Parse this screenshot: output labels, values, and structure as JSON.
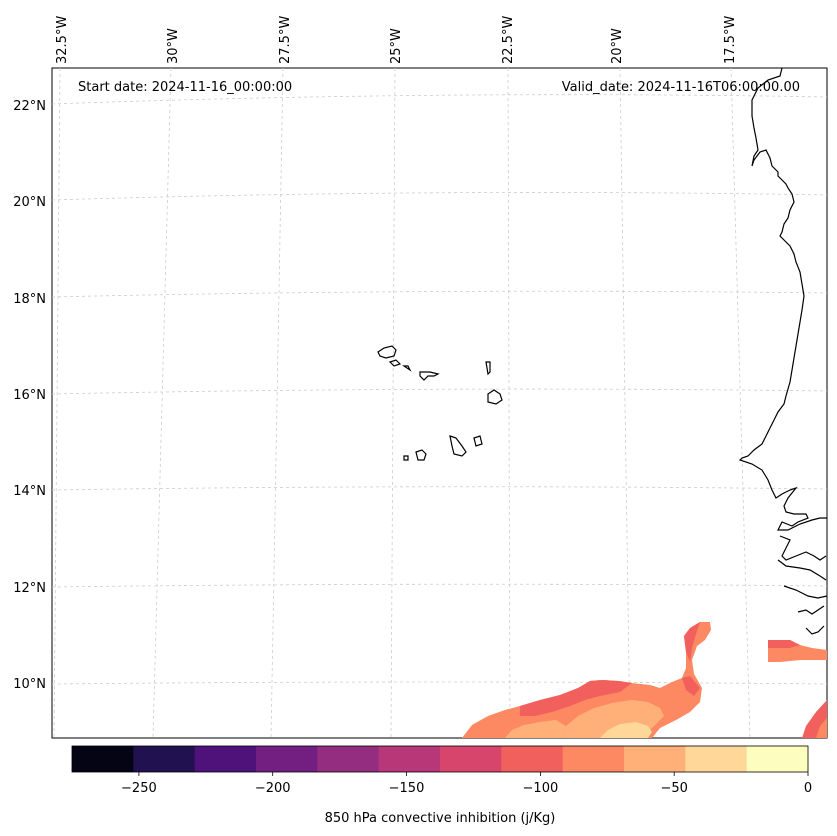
{
  "annotations": {
    "start_date": "Start date: 2024-11-16_00:00:00",
    "valid_date": "Valid_date: 2024-11-16T06:00:00.00"
  },
  "map": {
    "lon_labels": [
      "32.5°W",
      "30°W",
      "27.5°W",
      "25°W",
      "22.5°W",
      "20°W",
      "17.5°W"
    ],
    "lat_labels": [
      "22°N",
      "20°N",
      "18°N",
      "16°N",
      "14°N",
      "12°N",
      "10°N"
    ],
    "gridlines": true
  },
  "colorbar": {
    "label": "850 hPa convective inhibition (j/Kg)",
    "tick_labels": [
      "−250",
      "−200",
      "−150",
      "−100",
      "−50",
      "0"
    ],
    "colors": [
      "#050415",
      "#221150",
      "#4f127b",
      "#721f81",
      "#942c80",
      "#b73779",
      "#d8456c",
      "#f1605d",
      "#fc8961",
      "#feb078",
      "#fed799",
      "#fcfdbf"
    ],
    "colormap": "magma"
  },
  "colors": {
    "fill_low": "#f1605d",
    "fill_mid": "#fc8961",
    "fill_high": "#feb078",
    "fill_top": "#fed799",
    "fill_strong": "#d8456c"
  }
}
